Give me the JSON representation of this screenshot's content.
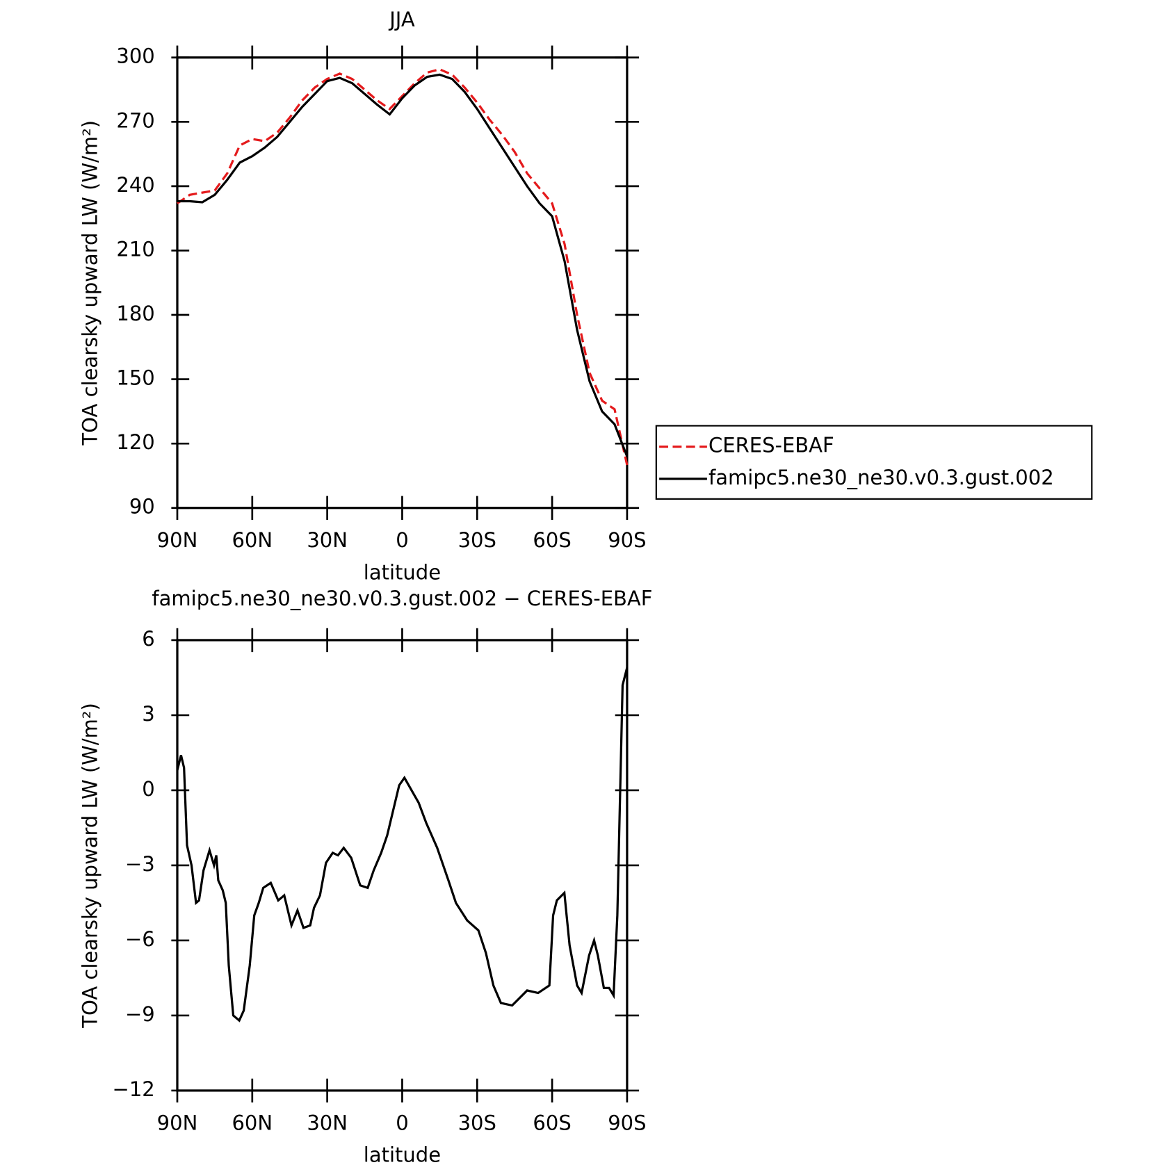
{
  "chart_data": [
    {
      "type": "line",
      "title": "JJA",
      "xlabel": "latitude",
      "ylabel": "TOA clearsky upward LW (W/m²)",
      "xlim": [
        90,
        -90
      ],
      "xticks": [
        {
          "value": 90,
          "label": "90N"
        },
        {
          "value": 60,
          "label": "60N"
        },
        {
          "value": 30,
          "label": "30N"
        },
        0,
        {
          "value": -30,
          "label": "30S"
        },
        {
          "value": -60,
          "label": "60S"
        },
        {
          "value": -90,
          "label": "90S"
        }
      ],
      "ylim": [
        90,
        300
      ],
      "yticks": [
        90,
        120,
        150,
        180,
        210,
        240,
        270,
        300
      ],
      "x": [
        90,
        85,
        80,
        75,
        70,
        65,
        60,
        55,
        50,
        45,
        40,
        35,
        30,
        25,
        20,
        15,
        10,
        5,
        0,
        -5,
        -10,
        -15,
        -20,
        -25,
        -30,
        -35,
        -40,
        -45,
        -50,
        -55,
        -60,
        -65,
        -70,
        -75,
        -80,
        -85,
        -90
      ],
      "series": [
        {
          "name": "CERES-EBAF",
          "color": "#e41a1c",
          "dash": true,
          "values": [
            232,
            236,
            237,
            238,
            246,
            259,
            262,
            261,
            265,
            272,
            280,
            286,
            290,
            292.5,
            290,
            285,
            280,
            276,
            282,
            288,
            293,
            294.5,
            292,
            286,
            279,
            271,
            264,
            256,
            246,
            239,
            232,
            213,
            180,
            153,
            140,
            136,
            110
          ]
        },
        {
          "name": "famipc5.ne30_ne30.v0.3.gust.002",
          "color": "#000000",
          "dash": false,
          "values": [
            233,
            233,
            232.5,
            236,
            243,
            251,
            254,
            258,
            263,
            270,
            277,
            283,
            289,
            290.5,
            288,
            283,
            278,
            273.5,
            281,
            287,
            291,
            292,
            290,
            284,
            276,
            267,
            258,
            249,
            240,
            232,
            226,
            205,
            173,
            149,
            135,
            129,
            114
          ]
        }
      ]
    },
    {
      "type": "line",
      "title": "famipc5.ne30_ne30.v0.3.gust.002 − CERES-EBAF",
      "xlabel": "latitude",
      "ylabel": "TOA clearsky upward LW (W/m²)",
      "xlim": [
        90,
        -90
      ],
      "xticks": [
        {
          "value": 90,
          "label": "90N"
        },
        {
          "value": 60,
          "label": "60N"
        },
        {
          "value": 30,
          "label": "30N"
        },
        0,
        {
          "value": -30,
          "label": "30S"
        },
        {
          "value": -60,
          "label": "60S"
        },
        {
          "value": -90,
          "label": "90S"
        }
      ],
      "ylim": [
        -12,
        6
      ],
      "yticks": [
        {
          "value": -12,
          "label": "−12"
        },
        {
          "value": -9,
          "label": "−9"
        },
        {
          "value": -6,
          "label": "−6"
        },
        {
          "value": -3,
          "label": "−3"
        },
        0,
        3,
        6
      ],
      "x": [
        90,
        88.5,
        87.3,
        86.1,
        84.3,
        82.5,
        81.3,
        79.5,
        77.1,
        75.3,
        74.4,
        73.6,
        71.8,
        70.6,
        69.4,
        67.6,
        65.2,
        63.4,
        61,
        59.2,
        57.4,
        55.6,
        52.6,
        49.6,
        47.2,
        44.3,
        41.9,
        39.5,
        36.8,
        35.3,
        32.9,
        30.5,
        27.8,
        25.7,
        23.4,
        20.4,
        16.8,
        13.8,
        11.4,
        8.4,
        6,
        3.6,
        1.2,
        -0.9,
        -6.6,
        -9.6,
        -14,
        -18.5,
        -21.5,
        -26,
        -30.5,
        -33.5,
        -36.5,
        -39.5,
        -44,
        -47,
        -50,
        -54.4,
        -58.9,
        -60.4,
        -61.9,
        -64.9,
        -67,
        -70,
        -71.8,
        -74.8,
        -76.8,
        -78.3,
        -80.7,
        -82.8,
        -84.6,
        -86.1,
        -88.2,
        -90
      ],
      "series": [
        {
          "name": "famipc5.ne30_ne30.v0.3.gust.002 − CERES-EBAF",
          "color": "#000000",
          "values": [
            0.8,
            1.4,
            0.9,
            -2.2,
            -3.0,
            -4.5,
            -4.4,
            -3.2,
            -2.4,
            -3.0,
            -2.6,
            -3.6,
            -4.0,
            -4.5,
            -7.0,
            -9.0,
            -9.2,
            -8.8,
            -7.0,
            -5.0,
            -4.5,
            -3.9,
            -3.7,
            -4.4,
            -4.2,
            -5.4,
            -4.8,
            -5.5,
            -5.4,
            -4.7,
            -4.2,
            -2.9,
            -2.5,
            -2.6,
            -2.3,
            -2.7,
            -3.8,
            -3.9,
            -3.2,
            -2.5,
            -1.8,
            -0.8,
            0.2,
            0.5,
            -0.5,
            -1.3,
            -2.3,
            -3.6,
            -4.5,
            -5.2,
            -5.6,
            -6.5,
            -7.8,
            -8.5,
            -8.6,
            -8.3,
            -8.0,
            -8.1,
            -7.8,
            -5.0,
            -4.4,
            -4.1,
            -6.2,
            -7.8,
            -8.1,
            -6.6,
            -6.0,
            -6.6,
            -7.9,
            -7.9,
            -8.2,
            -5.0,
            4.2,
            4.9
          ]
        }
      ]
    }
  ]
}
